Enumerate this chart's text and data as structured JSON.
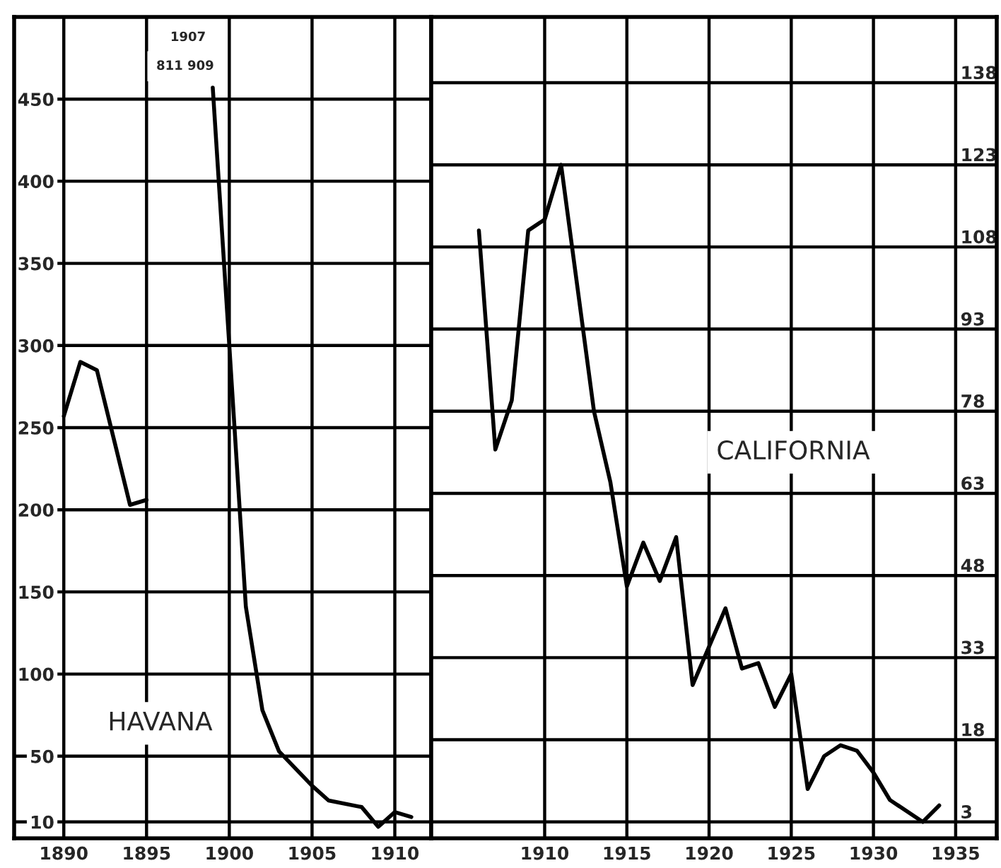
{
  "chart_data": [
    {
      "type": "line",
      "title": "HAVANA",
      "annotations": [
        "1907",
        "811 909"
      ],
      "x": [
        1890,
        1891,
        1892,
        1894,
        1895,
        1896,
        1897,
        1898,
        1899,
        1900,
        1901,
        1902,
        1903,
        1905,
        1906,
        1908,
        1909,
        1910,
        1911
      ],
      "series": [
        {
          "color": "#000000",
          "values": [
            257,
            290,
            285,
            203,
            206,
            null,
            null,
            null,
            457,
            300,
            141,
            78,
            53,
            32,
            23,
            19,
            7,
            16,
            13
          ]
        }
      ],
      "xlim": [
        1887,
        1912.2
      ],
      "ylim": [
        0,
        500
      ],
      "xticks": [
        1890,
        1895,
        1900,
        1905,
        1910
      ],
      "yticks": [
        10,
        50,
        100,
        150,
        200,
        250,
        300,
        350,
        400,
        450
      ],
      "grid": true,
      "legend": false,
      "marker": "none",
      "line_style": "solid"
    },
    {
      "type": "line",
      "title": "CALIFORNIA",
      "x": [
        1906,
        1907,
        1908,
        1909,
        1910,
        1911,
        1913,
        1914,
        1915,
        1916,
        1917,
        1918,
        1919,
        1921,
        1922,
        1923,
        1924,
        1925,
        1926,
        1927,
        1928,
        1929,
        1930,
        1931,
        1933,
        1934
      ],
      "series": [
        {
          "color": "#000000",
          "values": [
            111,
            71,
            80,
            111,
            113,
            123,
            78,
            65,
            46,
            54,
            47,
            55,
            28,
            42,
            31,
            32,
            24,
            30,
            9,
            15,
            17,
            16,
            12,
            7,
            3,
            6
          ]
        }
      ],
      "xlim": [
        1903.1,
        1937.5
      ],
      "ylim": [
        0,
        150
      ],
      "xticks": [
        1910,
        1915,
        1920,
        1925,
        1930,
        1935
      ],
      "yticks": [
        3,
        18,
        33,
        48,
        63,
        78,
        93,
        108,
        123,
        138
      ],
      "grid": true,
      "legend": false,
      "marker": "none",
      "line_style": "solid"
    }
  ]
}
